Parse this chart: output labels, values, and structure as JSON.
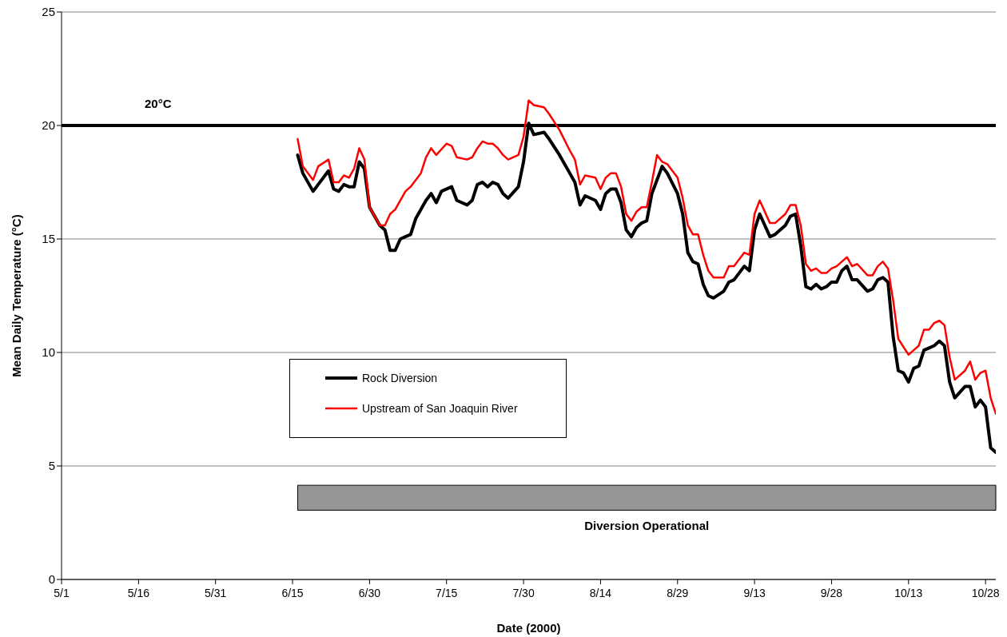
{
  "chart_data": {
    "type": "line",
    "xlabel": "Date (2000)",
    "ylabel": "Mean Daily Temperature (°C)",
    "xlim": [
      "2000-05-01",
      "2000-10-30"
    ],
    "xticks": [
      {
        "value": "2000-05-01",
        "label": "5/1"
      },
      {
        "value": "2000-05-16",
        "label": "5/16"
      },
      {
        "value": "2000-05-31",
        "label": "5/31"
      },
      {
        "value": "2000-06-15",
        "label": "6/15"
      },
      {
        "value": "2000-06-30",
        "label": "6/30"
      },
      {
        "value": "2000-07-15",
        "label": "7/15"
      },
      {
        "value": "2000-07-30",
        "label": "7/30"
      },
      {
        "value": "2000-08-14",
        "label": "8/14"
      },
      {
        "value": "2000-08-29",
        "label": "8/29"
      },
      {
        "value": "2000-09-13",
        "label": "9/13"
      },
      {
        "value": "2000-09-28",
        "label": "9/28"
      },
      {
        "value": "2000-10-13",
        "label": "10/13"
      },
      {
        "value": "2000-10-28",
        "label": "10/28"
      }
    ],
    "ylim": [
      0,
      25
    ],
    "yticks": [
      0,
      5,
      10,
      15,
      20,
      25
    ],
    "grid": "y",
    "legend": "bottom left",
    "marker": "none",
    "line_style": "solid",
    "ref_lines": [
      {
        "axis": "y",
        "value": 20,
        "label": "20°C",
        "color": "#000000"
      }
    ],
    "bands": [
      {
        "axis": "x",
        "from": "2000-06-16",
        "to": "2000-10-30",
        "label": "Diversion Operational",
        "color": "#969696"
      }
    ],
    "series": [
      {
        "name": "Rock Diversion",
        "color": "#000000",
        "x": [
          "2000-06-16",
          "2000-06-17",
          "2000-06-19",
          "2000-06-22",
          "2000-06-23",
          "2000-06-24",
          "2000-06-25",
          "2000-06-26",
          "2000-06-27",
          "2000-06-28",
          "2000-06-29",
          "2000-06-30",
          "2000-07-02",
          "2000-07-03",
          "2000-07-04",
          "2000-07-05",
          "2000-07-06",
          "2000-07-08",
          "2000-07-09",
          "2000-07-11",
          "2000-07-12",
          "2000-07-13",
          "2000-07-14",
          "2000-07-16",
          "2000-07-17",
          "2000-07-19",
          "2000-07-20",
          "2000-07-21",
          "2000-07-22",
          "2000-07-23",
          "2000-07-24",
          "2000-07-25",
          "2000-07-26",
          "2000-07-27",
          "2000-07-29",
          "2000-07-30",
          "2000-07-31",
          "2000-08-01",
          "2000-08-03",
          "2000-08-04",
          "2000-08-06",
          "2000-08-08",
          "2000-08-09",
          "2000-08-10",
          "2000-08-11",
          "2000-08-13",
          "2000-08-14",
          "2000-08-15",
          "2000-08-16",
          "2000-08-17",
          "2000-08-18",
          "2000-08-19",
          "2000-08-20",
          "2000-08-21",
          "2000-08-22",
          "2000-08-23",
          "2000-08-24",
          "2000-08-26",
          "2000-08-27",
          "2000-08-29",
          "2000-08-30",
          "2000-08-31",
          "2000-09-01",
          "2000-09-02",
          "2000-09-03",
          "2000-09-04",
          "2000-09-05",
          "2000-09-07",
          "2000-09-08",
          "2000-09-09",
          "2000-09-10",
          "2000-09-11",
          "2000-09-12",
          "2000-09-13",
          "2000-09-14",
          "2000-09-16",
          "2000-09-17",
          "2000-09-19",
          "2000-09-20",
          "2000-09-21",
          "2000-09-22",
          "2000-09-23",
          "2000-09-24",
          "2000-09-25",
          "2000-09-26",
          "2000-09-27",
          "2000-09-28",
          "2000-09-29",
          "2000-09-30",
          "2000-10-01",
          "2000-10-02",
          "2000-10-03",
          "2000-10-05",
          "2000-10-06",
          "2000-10-07",
          "2000-10-08",
          "2000-10-09",
          "2000-10-10",
          "2000-10-11",
          "2000-10-12",
          "2000-10-13",
          "2000-10-14",
          "2000-10-15",
          "2000-10-16",
          "2000-10-17",
          "2000-10-18",
          "2000-10-19",
          "2000-10-20",
          "2000-10-21",
          "2000-10-22",
          "2000-10-24",
          "2000-10-25",
          "2000-10-26",
          "2000-10-27",
          "2000-10-28",
          "2000-10-29",
          "2000-10-30"
        ],
        "values": [
          18.7,
          17.9,
          17.1,
          18.0,
          17.2,
          17.1,
          17.4,
          17.3,
          17.3,
          18.4,
          18.1,
          16.4,
          15.6,
          15.4,
          14.5,
          14.5,
          15.0,
          15.2,
          15.9,
          16.7,
          17.0,
          16.6,
          17.1,
          17.3,
          16.7,
          16.5,
          16.7,
          17.4,
          17.5,
          17.3,
          17.5,
          17.4,
          17.0,
          16.8,
          17.3,
          18.4,
          20.1,
          19.6,
          19.7,
          19.4,
          18.7,
          17.9,
          17.5,
          16.5,
          16.9,
          16.7,
          16.3,
          17.0,
          17.2,
          17.2,
          16.6,
          15.4,
          15.1,
          15.5,
          15.7,
          15.8,
          17.0,
          18.2,
          17.9,
          17.0,
          16.1,
          14.4,
          14.0,
          13.9,
          13.0,
          12.5,
          12.4,
          12.7,
          13.1,
          13.2,
          13.5,
          13.8,
          13.6,
          15.4,
          16.1,
          15.1,
          15.2,
          15.6,
          16.0,
          16.1,
          14.7,
          12.9,
          12.8,
          13.0,
          12.8,
          12.9,
          13.1,
          13.1,
          13.6,
          13.8,
          13.2,
          13.2,
          12.7,
          12.8,
          13.2,
          13.3,
          13.1,
          10.7,
          9.2,
          9.1,
          8.7,
          9.3,
          9.4,
          10.1,
          10.2,
          10.3,
          10.5,
          10.3,
          8.7,
          8.0,
          8.5,
          8.5,
          7.6,
          7.9,
          7.6,
          5.8,
          5.6
        ]
      },
      {
        "name": "Upstream of San Joaquin River",
        "color": "#ff0000",
        "x": [
          "2000-06-16",
          "2000-06-17",
          "2000-06-19",
          "2000-06-20",
          "2000-06-22",
          "2000-06-23",
          "2000-06-24",
          "2000-06-25",
          "2000-06-26",
          "2000-06-27",
          "2000-06-28",
          "2000-06-29",
          "2000-06-30",
          "2000-07-02",
          "2000-07-03",
          "2000-07-04",
          "2000-07-05",
          "2000-07-07",
          "2000-07-08",
          "2000-07-10",
          "2000-07-11",
          "2000-07-12",
          "2000-07-13",
          "2000-07-15",
          "2000-07-16",
          "2000-07-17",
          "2000-07-19",
          "2000-07-20",
          "2000-07-21",
          "2000-07-22",
          "2000-07-23",
          "2000-07-24",
          "2000-07-25",
          "2000-07-26",
          "2000-07-27",
          "2000-07-29",
          "2000-07-30",
          "2000-07-31",
          "2000-08-01",
          "2000-08-03",
          "2000-08-04",
          "2000-08-06",
          "2000-08-08",
          "2000-08-09",
          "2000-08-10",
          "2000-08-11",
          "2000-08-13",
          "2000-08-14",
          "2000-08-15",
          "2000-08-16",
          "2000-08-17",
          "2000-08-18",
          "2000-08-19",
          "2000-08-20",
          "2000-08-21",
          "2000-08-22",
          "2000-08-23",
          "2000-08-24",
          "2000-08-25",
          "2000-08-26",
          "2000-08-27",
          "2000-08-29",
          "2000-08-30",
          "2000-08-31",
          "2000-09-01",
          "2000-09-02",
          "2000-09-03",
          "2000-09-04",
          "2000-09-05",
          "2000-09-07",
          "2000-09-08",
          "2000-09-09",
          "2000-09-10",
          "2000-09-11",
          "2000-09-12",
          "2000-09-13",
          "2000-09-14",
          "2000-09-16",
          "2000-09-17",
          "2000-09-19",
          "2000-09-20",
          "2000-09-21",
          "2000-09-22",
          "2000-09-23",
          "2000-09-24",
          "2000-09-25",
          "2000-09-26",
          "2000-09-27",
          "2000-09-28",
          "2000-09-29",
          "2000-09-30",
          "2000-10-01",
          "2000-10-02",
          "2000-10-03",
          "2000-10-05",
          "2000-10-06",
          "2000-10-07",
          "2000-10-08",
          "2000-10-09",
          "2000-10-10",
          "2000-10-11",
          "2000-10-13",
          "2000-10-14",
          "2000-10-15",
          "2000-10-16",
          "2000-10-17",
          "2000-10-18",
          "2000-10-19",
          "2000-10-20",
          "2000-10-21",
          "2000-10-22",
          "2000-10-24",
          "2000-10-25",
          "2000-10-26",
          "2000-10-27",
          "2000-10-28",
          "2000-10-29",
          "2000-10-30"
        ],
        "values": [
          19.4,
          18.2,
          17.6,
          18.2,
          18.5,
          17.5,
          17.5,
          17.8,
          17.7,
          18.1,
          19.0,
          18.5,
          16.4,
          15.6,
          15.6,
          16.1,
          16.3,
          17.1,
          17.3,
          17.9,
          18.6,
          19.0,
          18.7,
          19.2,
          19.1,
          18.6,
          18.5,
          18.6,
          19.0,
          19.3,
          19.2,
          19.2,
          19.0,
          18.7,
          18.5,
          18.7,
          19.5,
          21.1,
          20.9,
          20.8,
          20.5,
          19.8,
          18.9,
          18.5,
          17.4,
          17.8,
          17.7,
          17.2,
          17.7,
          17.9,
          17.9,
          17.3,
          16.1,
          15.8,
          16.2,
          16.4,
          16.4,
          17.5,
          18.7,
          18.4,
          18.3,
          17.7,
          16.8,
          15.6,
          15.2,
          15.2,
          14.3,
          13.6,
          13.3,
          13.3,
          13.8,
          13.8,
          14.1,
          14.4,
          14.3,
          16.1,
          16.7,
          15.7,
          15.7,
          16.1,
          16.5,
          16.5,
          15.6,
          13.9,
          13.6,
          13.7,
          13.5,
          13.5,
          13.7,
          13.8,
          14.0,
          14.2,
          13.8,
          13.9,
          13.4,
          13.4,
          13.8,
          14.0,
          13.7,
          12.3,
          10.6,
          9.9,
          10.1,
          10.3,
          11.0,
          11.0,
          11.3,
          11.4,
          11.2,
          9.8,
          8.8,
          9.2,
          9.6,
          8.8,
          9.1,
          9.2,
          8.0,
          7.3
        ]
      }
    ]
  }
}
